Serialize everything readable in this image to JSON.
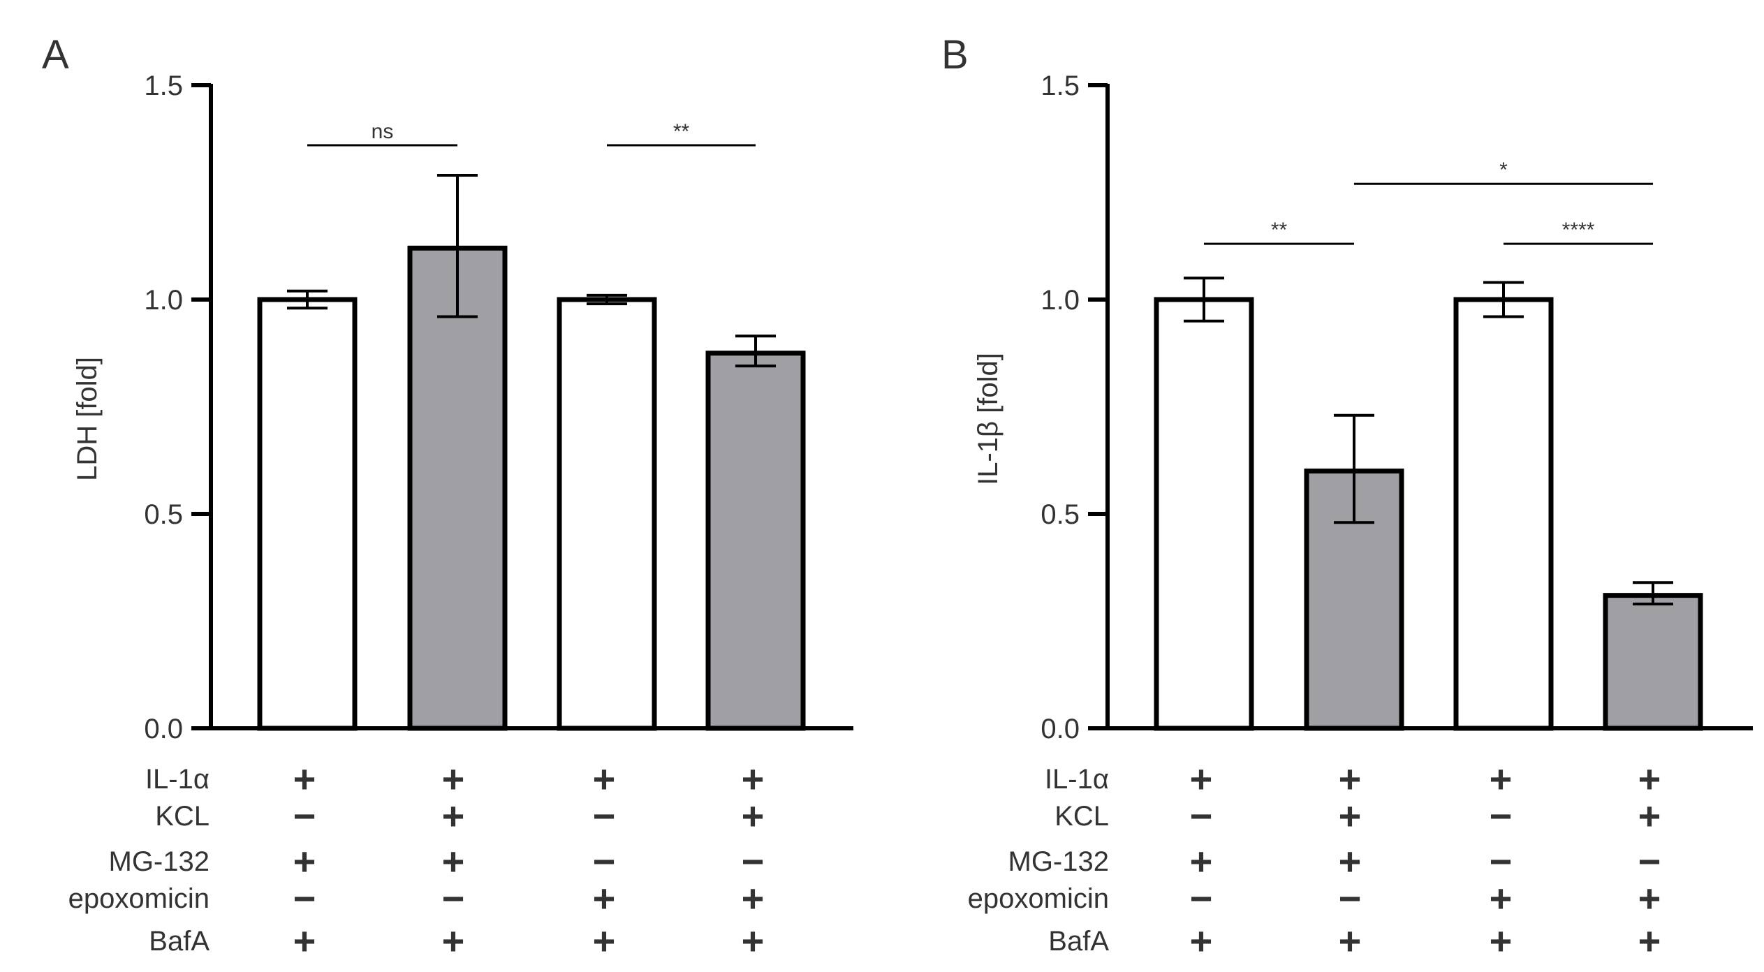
{
  "chart_data": [
    {
      "panel": "A",
      "type": "bar",
      "ylabel": "LDH [fold]",
      "ylim": [
        0,
        1.5
      ],
      "yticks": [
        "0.0",
        "0.5",
        "1.0",
        "1.5"
      ],
      "bars": [
        {
          "value": 1.0,
          "err_upper": 0.02,
          "err_lower": 0.02,
          "fill": "white"
        },
        {
          "value": 1.12,
          "err_upper": 0.17,
          "err_lower": 0.16,
          "fill": "grey"
        },
        {
          "value": 1.0,
          "err_upper": 0.01,
          "err_lower": 0.01,
          "fill": "white"
        },
        {
          "value": 0.875,
          "err_upper": 0.04,
          "err_lower": 0.03,
          "fill": "grey"
        }
      ],
      "significance": [
        {
          "from": 0,
          "to": 1,
          "y": 1.36,
          "label": "ns"
        },
        {
          "from": 2,
          "to": 3,
          "y": 1.36,
          "label": "**"
        }
      ],
      "conditions": [
        {
          "label": "IL-1α",
          "signs": [
            "+",
            "+",
            "+",
            "+"
          ]
        },
        {
          "label": "KCL",
          "signs": [
            "−",
            "+",
            "−",
            "+"
          ]
        },
        {
          "label": "MG-132",
          "signs": [
            "+",
            "+",
            "−",
            "−"
          ]
        },
        {
          "label": "epoxomicin",
          "signs": [
            "−",
            "−",
            "+",
            "+"
          ]
        },
        {
          "label": "BafA",
          "signs": [
            "+",
            "+",
            "+",
            "+"
          ]
        }
      ]
    },
    {
      "panel": "B",
      "type": "bar",
      "ylabel": "IL-1β [fold]",
      "ylim": [
        0,
        1.5
      ],
      "yticks": [
        "0.0",
        "0.5",
        "1.0",
        "1.5"
      ],
      "bars": [
        {
          "value": 1.0,
          "err_upper": 0.05,
          "err_lower": 0.05,
          "fill": "white"
        },
        {
          "value": 0.6,
          "err_upper": 0.13,
          "err_lower": 0.12,
          "fill": "grey"
        },
        {
          "value": 1.0,
          "err_upper": 0.04,
          "err_lower": 0.04,
          "fill": "white"
        },
        {
          "value": 0.31,
          "err_upper": 0.03,
          "err_lower": 0.02,
          "fill": "grey"
        }
      ],
      "significance": [
        {
          "from": 0,
          "to": 1,
          "y": 1.13,
          "label": "**"
        },
        {
          "from": 1,
          "to": 3,
          "y": 1.27,
          "label": "*"
        },
        {
          "from": 2,
          "to": 3,
          "y": 1.13,
          "label": "****"
        }
      ],
      "conditions": [
        {
          "label": "IL-1α",
          "signs": [
            "+",
            "+",
            "+",
            "+"
          ]
        },
        {
          "label": "KCL",
          "signs": [
            "−",
            "+",
            "−",
            "+"
          ]
        },
        {
          "label": "MG-132",
          "signs": [
            "+",
            "+",
            "−",
            "−"
          ]
        },
        {
          "label": "epoxomicin",
          "signs": [
            "−",
            "−",
            "+",
            "+"
          ]
        },
        {
          "label": "BafA",
          "signs": [
            "+",
            "+",
            "+",
            "+"
          ]
        }
      ]
    }
  ],
  "colors": {
    "axis": "#000000",
    "bar_white": "#ffffff",
    "bar_grey": "#a0a0a4",
    "text": "#333333"
  }
}
